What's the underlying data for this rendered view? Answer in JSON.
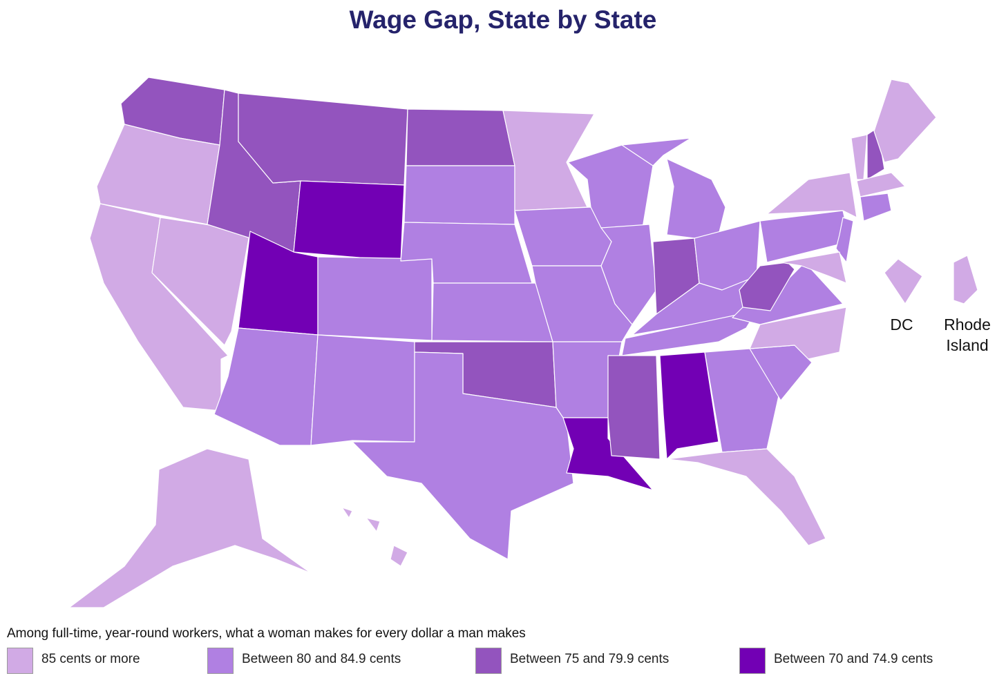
{
  "title": "Wage Gap, State by State",
  "legend": {
    "heading": "Among full-time, year-round workers, what a woman makes for every dollar a man makes",
    "items": [
      {
        "label": "85 cents or more",
        "color": "#d1aae5"
      },
      {
        "label": "Between 80 and 84.9 cents",
        "color": "#b080e2"
      },
      {
        "label": "Between 75 and 79.9 cents",
        "color": "#9354be"
      },
      {
        "label": "Between 70 and 74.9 cents",
        "color": "#7200b4"
      }
    ]
  },
  "insets": [
    {
      "label": "DC"
    },
    {
      "label": "Rhode Island"
    }
  ]
}
